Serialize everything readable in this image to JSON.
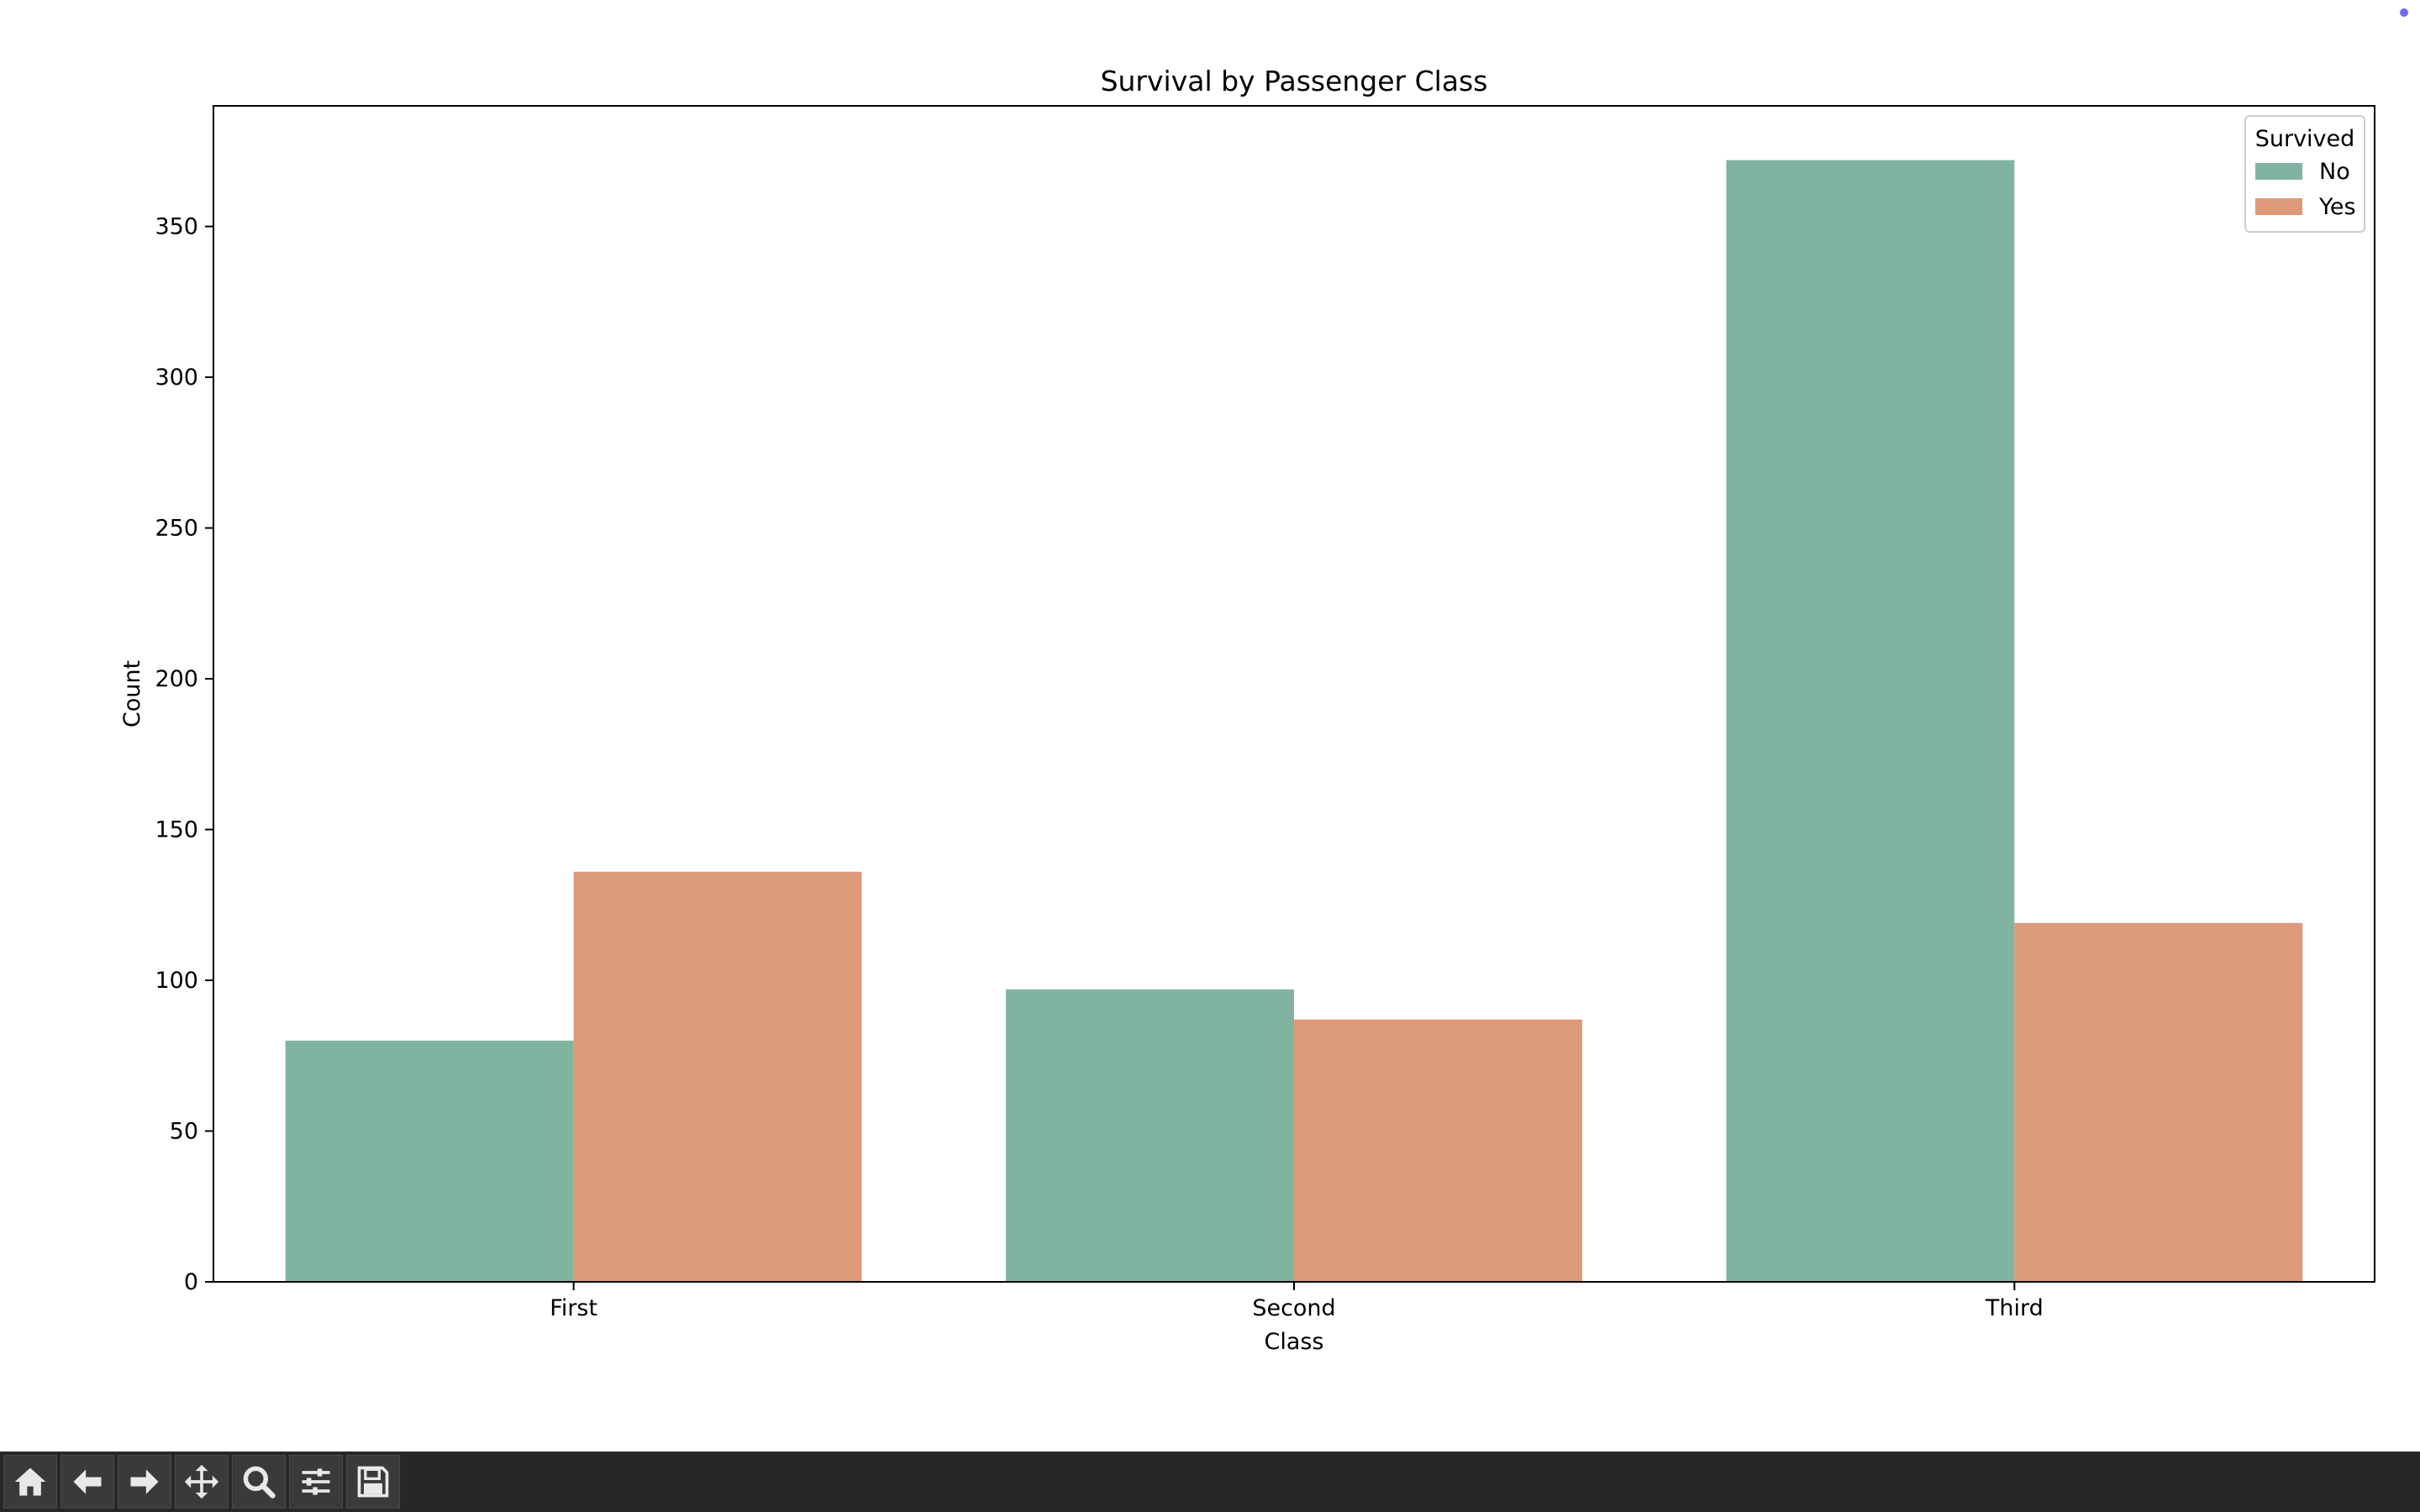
{
  "chart_data": {
    "type": "bar",
    "title": "Survival by Passenger Class",
    "xlabel": "Class",
    "ylabel": "Count",
    "categories": [
      "First",
      "Second",
      "Third"
    ],
    "series": [
      {
        "name": "No",
        "values": [
          80,
          97,
          372
        ],
        "color": "#81b4a0"
      },
      {
        "name": "Yes",
        "values": [
          136,
          87,
          119
        ],
        "color": "#dd9a7a"
      }
    ],
    "ylim": [
      0,
      390
    ],
    "yticks": [
      0,
      50,
      100,
      150,
      200,
      250,
      300,
      350
    ],
    "grid": false,
    "legend": {
      "title": "Survived",
      "placement": "top-right"
    }
  },
  "toolbar": {
    "buttons": [
      {
        "icon": "home-icon"
      },
      {
        "icon": "back-arrow-icon"
      },
      {
        "icon": "forward-arrow-icon"
      },
      {
        "icon": "pan-icon"
      },
      {
        "icon": "zoom-icon"
      },
      {
        "icon": "configure-subplots-icon"
      },
      {
        "icon": "save-icon"
      }
    ]
  }
}
